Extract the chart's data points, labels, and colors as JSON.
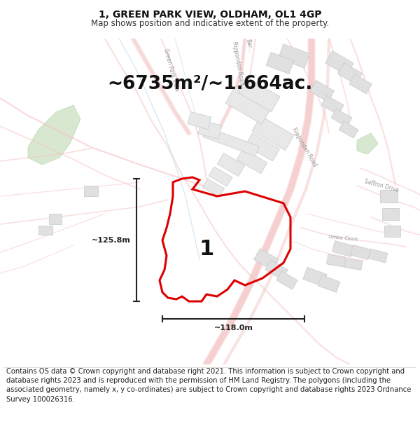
{
  "title_line1": "1, GREEN PARK VIEW, OLDHAM, OL1 4GP",
  "title_line2": "Map shows position and indicative extent of the property.",
  "area_text": "~6735m²/~1.664ac.",
  "width_label": "~118.0m",
  "height_label": "~125.8m",
  "plot_number": "1",
  "footer_text": "Contains OS data © Crown copyright and database right 2021. This information is subject to Crown copyright and database rights 2023 and is reproduced with the permission of HM Land Registry. The polygons (including the associated geometry, namely x, y co-ordinates) are subject to Crown copyright and database rights 2023 Ordnance Survey 100026316.",
  "bg_color": "#ffffff",
  "map_bg": "#ffffff",
  "plot_color": "#dd0000",
  "road_pink": "#f5c0c0",
  "road_outline": "#e8a0a0",
  "building_fill": "#e0e0e0",
  "building_edge": "#c8c8c8",
  "green_fill": "#d8e8d0",
  "green_edge": "#b8d8b0",
  "blue_line": "#b8d8f0",
  "dim_color": "#222222",
  "label_fs": 8,
  "area_fs": 19,
  "title_fs": 10,
  "sub_fs": 8.5,
  "footer_fs": 7.2,
  "num_fs": 22,
  "road_label_fs": 5.5,
  "road_lw": 1.0,
  "plot_lw": 2.2
}
